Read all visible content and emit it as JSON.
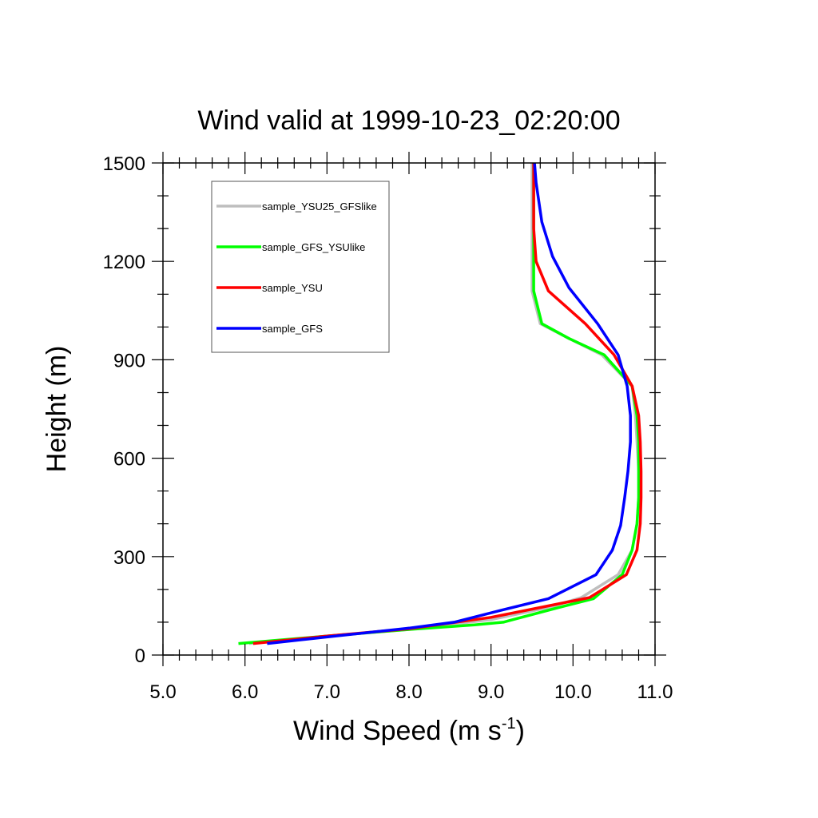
{
  "chart_data": {
    "type": "line",
    "title": "Wind valid at 1999-10-23_02:20:00",
    "xlabel": "Wind Speed (m s",
    "xlabel_sup": "-1",
    "xlabel_close": ")",
    "ylabel": "Height (m)",
    "xlim": [
      5.0,
      11.0
    ],
    "ylim": [
      0,
      1500
    ],
    "xticks": [
      5.0,
      6.0,
      7.0,
      8.0,
      9.0,
      10.0,
      11.0
    ],
    "xtick_labels": [
      "5.0",
      "6.0",
      "7.0",
      "8.0",
      "9.0",
      "10.0",
      "11.0"
    ],
    "yticks": [
      0,
      300,
      600,
      900,
      1200,
      1500
    ],
    "ytick_labels": [
      "0",
      "300",
      "600",
      "900",
      "1200",
      "1500"
    ],
    "grid": false,
    "legend_position": "top-left",
    "series": [
      {
        "name": "sample_YSU25_GFSlike",
        "color": "#bebebe",
        "points": [
          [
            6.05,
            35
          ],
          [
            7.0,
            58
          ],
          [
            8.0,
            78
          ],
          [
            9.0,
            108
          ],
          [
            9.7,
            145
          ],
          [
            10.1,
            175
          ],
          [
            10.55,
            245
          ],
          [
            10.72,
            320
          ],
          [
            10.78,
            400
          ],
          [
            10.8,
            480
          ],
          [
            10.8,
            560
          ],
          [
            10.78,
            650
          ],
          [
            10.76,
            730
          ],
          [
            10.72,
            820
          ],
          [
            10.35,
            915
          ],
          [
            9.95,
            965
          ],
          [
            9.6,
            1010
          ],
          [
            9.5,
            1110
          ],
          [
            9.5,
            1200
          ],
          [
            9.5,
            1300
          ],
          [
            9.5,
            1400
          ],
          [
            9.5,
            1500
          ]
        ]
      },
      {
        "name": "sample_GFS_YSUlike",
        "color": "#00ff00",
        "points": [
          [
            5.92,
            35
          ],
          [
            7.0,
            58
          ],
          [
            8.0,
            78
          ],
          [
            8.8,
            92
          ],
          [
            9.15,
            100
          ],
          [
            9.75,
            140
          ],
          [
            10.25,
            172
          ],
          [
            10.6,
            245
          ],
          [
            10.72,
            320
          ],
          [
            10.78,
            400
          ],
          [
            10.8,
            480
          ],
          [
            10.8,
            560
          ],
          [
            10.8,
            650
          ],
          [
            10.78,
            730
          ],
          [
            10.72,
            820
          ],
          [
            10.38,
            915
          ],
          [
            9.95,
            965
          ],
          [
            9.62,
            1010
          ],
          [
            9.52,
            1110
          ],
          [
            9.52,
            1200
          ],
          [
            9.52,
            1300
          ],
          [
            9.52,
            1400
          ],
          [
            9.52,
            1500
          ]
        ]
      },
      {
        "name": "sample_YSU",
        "color": "#ff0000",
        "points": [
          [
            6.1,
            35
          ],
          [
            7.0,
            58
          ],
          [
            8.0,
            80
          ],
          [
            9.0,
            115
          ],
          [
            9.6,
            145
          ],
          [
            10.2,
            175
          ],
          [
            10.65,
            245
          ],
          [
            10.78,
            320
          ],
          [
            10.82,
            400
          ],
          [
            10.83,
            480
          ],
          [
            10.83,
            560
          ],
          [
            10.82,
            650
          ],
          [
            10.8,
            730
          ],
          [
            10.72,
            820
          ],
          [
            10.5,
            915
          ],
          [
            10.15,
            1010
          ],
          [
            9.7,
            1110
          ],
          [
            9.55,
            1200
          ],
          [
            9.52,
            1300
          ],
          [
            9.52,
            1400
          ],
          [
            9.52,
            1500
          ]
        ]
      },
      {
        "name": "sample_GFS",
        "color": "#0000ff",
        "points": [
          [
            6.27,
            35
          ],
          [
            7.0,
            55
          ],
          [
            8.0,
            82
          ],
          [
            8.55,
            100
          ],
          [
            9.1,
            135
          ],
          [
            9.7,
            172
          ],
          [
            10.28,
            245
          ],
          [
            10.48,
            320
          ],
          [
            10.58,
            395
          ],
          [
            10.63,
            480
          ],
          [
            10.67,
            560
          ],
          [
            10.7,
            650
          ],
          [
            10.7,
            730
          ],
          [
            10.66,
            820
          ],
          [
            10.55,
            915
          ],
          [
            10.3,
            1010
          ],
          [
            9.95,
            1120
          ],
          [
            9.75,
            1215
          ],
          [
            9.62,
            1320
          ],
          [
            9.55,
            1440
          ],
          [
            9.53,
            1500
          ]
        ]
      }
    ]
  }
}
